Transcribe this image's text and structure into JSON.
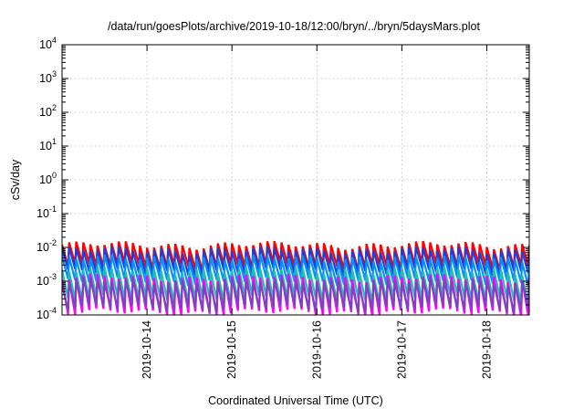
{
  "chart_data": {
    "type": "line",
    "title": "/data/run/goesPlots/archive/2019-10-18/12:00/bryn/../bryn/5daysMars.plot",
    "xlabel": "Coordinated Universal Time (UTC)",
    "ylabel": "cSv/day",
    "y_scale": "log",
    "ylim": [
      0.0001,
      10000
    ],
    "xlim": [
      "2019-10-13T00:00",
      "2019-10-18T12:00"
    ],
    "x_ticks": [
      "2019-10-14",
      "2019-10-15",
      "2019-10-16",
      "2019-10-17",
      "2019-10-18"
    ],
    "y_ticks": [
      {
        "base": "10",
        "exp": "-4",
        "value": 0.0001
      },
      {
        "base": "10",
        "exp": "-3",
        "value": 0.001
      },
      {
        "base": "10",
        "exp": "-2",
        "value": 0.01
      },
      {
        "base": "10",
        "exp": "-1",
        "value": 0.1
      },
      {
        "base": "10",
        "exp": "0",
        "value": 1
      },
      {
        "base": "10",
        "exp": "1",
        "value": 10
      },
      {
        "base": "10",
        "exp": "2",
        "value": 100
      },
      {
        "base": "10",
        "exp": "3",
        "value": 1000
      },
      {
        "base": "10",
        "exp": "4",
        "value": 10000
      }
    ],
    "grid": true,
    "cycle_hours": 2,
    "series": [
      {
        "color": "#ff0000",
        "peak": 0.012,
        "trough": 0.0028
      },
      {
        "color": "#1f3fd8",
        "peak": 0.0085,
        "trough": 0.0019
      },
      {
        "color": "#0090ff",
        "peak": 0.0048,
        "trough": 0.001
      },
      {
        "color": "#20c0b0",
        "peak": 0.0021,
        "trough": 0.0003
      },
      {
        "color": "#ff00ff",
        "peak": 0.0013,
        "trough": 0.00012
      },
      {
        "color": "#8040c0",
        "peak": 0.001,
        "trough": 0.00016
      }
    ]
  }
}
